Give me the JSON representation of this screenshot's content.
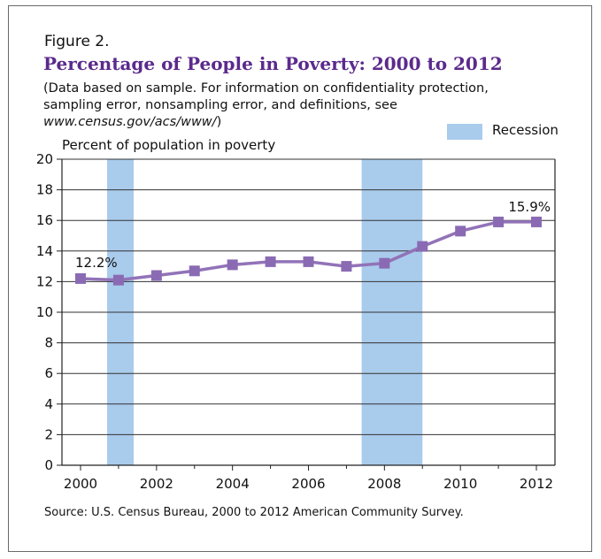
{
  "figure_label": "Figure 2.",
  "title": "Percentage of People in Poverty: 2000 to 2012",
  "subtitle": {
    "line1": "(Data based on sample. For information on confidentiality protection,",
    "line2": "sampling error, nonsampling error, and definitions, see",
    "url": "www.census.gov/acs/www/",
    "url_close": ")"
  },
  "source": "Source: U.S. Census Bureau, 2000 to 2012 American Community Survey.",
  "colors": {
    "title": "#5b2a8c",
    "line": "#9273b8",
    "marker": "#8a6bb3",
    "recession": "#a9cbec"
  },
  "chart_data": {
    "type": "line",
    "ylabel": "Percent of population in poverty",
    "xlabel": "",
    "ylim": [
      0,
      20
    ],
    "xlim": [
      2000,
      2012
    ],
    "yticks": [
      0,
      2,
      4,
      6,
      8,
      10,
      12,
      14,
      16,
      18,
      20
    ],
    "xtick_labels": [
      "2000",
      "2002",
      "2004",
      "2006",
      "2008",
      "2010",
      "2012"
    ],
    "xticks": [
      2000,
      2002,
      2004,
      2006,
      2008,
      2010,
      2012
    ],
    "grid": "horizontal",
    "legend": {
      "label": "Recession",
      "position": "top-right"
    },
    "recessions": [
      [
        2000.7,
        2001.4
      ],
      [
        2007.4,
        2009.0
      ]
    ],
    "series": [
      {
        "x": [
          2000,
          2001,
          2002,
          2003,
          2004,
          2005,
          2006,
          2007,
          2008,
          2009,
          2010,
          2011,
          2012
        ],
        "values": [
          12.2,
          12.1,
          12.4,
          12.7,
          13.1,
          13.3,
          13.3,
          13.0,
          13.2,
          14.3,
          15.3,
          15.9,
          15.9
        ]
      }
    ],
    "annotations": [
      {
        "x": 2000,
        "y": 12.2,
        "text": "12.2%"
      },
      {
        "x": 2012,
        "y": 15.9,
        "text": "15.9%"
      }
    ]
  }
}
